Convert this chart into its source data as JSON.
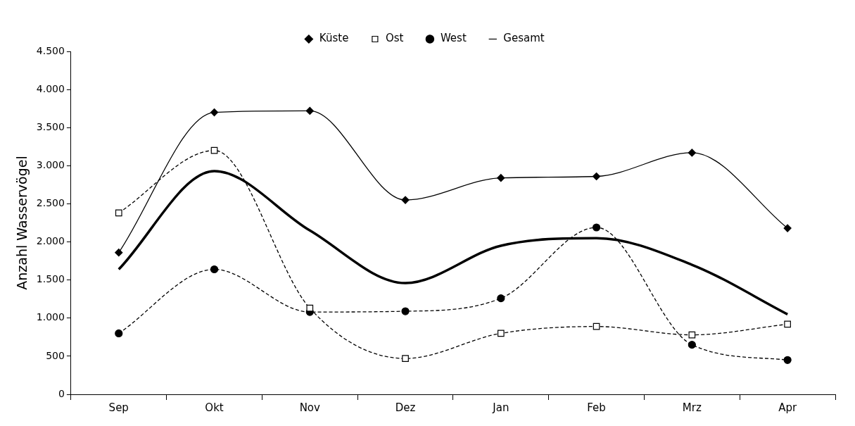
{
  "chart_data": {
    "type": "line",
    "ylabel": "Anzahl Wasservögel",
    "categories": [
      "Sep",
      "Okt",
      "Nov",
      "Dez",
      "Jan",
      "Feb",
      "Mrz",
      "Apr"
    ],
    "series": [
      {
        "name": "Küste",
        "color": "#000000",
        "marker": "diamond",
        "line_style": "solid",
        "values": [
          1860,
          3700,
          3720,
          2550,
          2840,
          2860,
          3170,
          2180
        ]
      },
      {
        "name": "Ost",
        "color": "#000000",
        "marker": "square",
        "line_style": "dashed",
        "values": [
          2380,
          3200,
          1130,
          470,
          800,
          890,
          780,
          920
        ]
      },
      {
        "name": "West",
        "color": "#000000",
        "marker": "circle",
        "line_style": "dashed",
        "values": [
          800,
          1640,
          1080,
          1090,
          1260,
          2190,
          650,
          450
        ]
      },
      {
        "name": "Gesamt",
        "color": "#000000",
        "marker": "none",
        "line_style": "solid",
        "values": [
          1640,
          2930,
          2150,
          1460,
          1950,
          2050,
          1700,
          1050
        ]
      }
    ],
    "ylim": [
      0,
      4500
    ],
    "yticks": [
      0,
      {
        "value": 500,
        "label": "500"
      },
      {
        "value": 1000,
        "label": "1.000"
      },
      {
        "value": 1500,
        "label": "1.500"
      },
      {
        "value": 2000,
        "label": "2.000"
      },
      {
        "value": 2500,
        "label": "2.500"
      },
      {
        "value": 3000,
        "label": "3.000"
      },
      {
        "value": 3500,
        "label": "3.500"
      },
      {
        "value": 4000,
        "label": "4.000"
      },
      {
        "value": 4500,
        "label": "4.500"
      }
    ],
    "grid": false,
    "legend": "top"
  }
}
